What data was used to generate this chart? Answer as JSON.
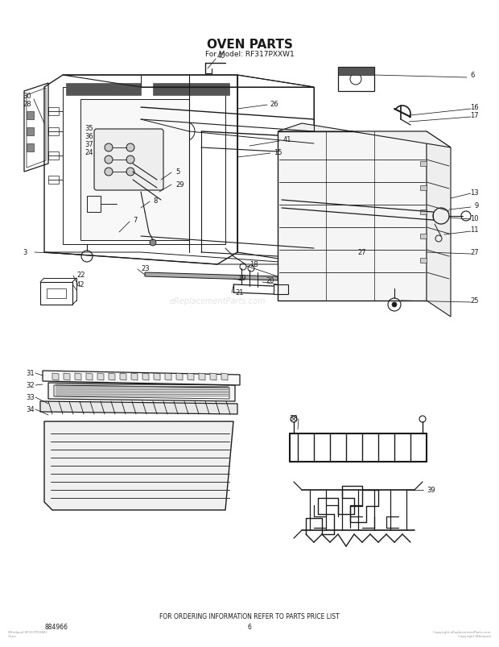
{
  "title": "OVEN PARTS",
  "subtitle": "For Model: RF317PXXW1",
  "footer_text": "FOR ORDERING INFORMATION REFER TO PARTS PRICE LIST",
  "part_number": "884966",
  "page_number": "6",
  "watermark": "eReplacementParts.com",
  "bg_color": "#ffffff",
  "line_color": "#1a1a1a",
  "title_fontsize": 11,
  "subtitle_fontsize": 6.5,
  "label_fontsize": 6,
  "footer_fontsize": 5.5,
  "small_fontsize": 4
}
